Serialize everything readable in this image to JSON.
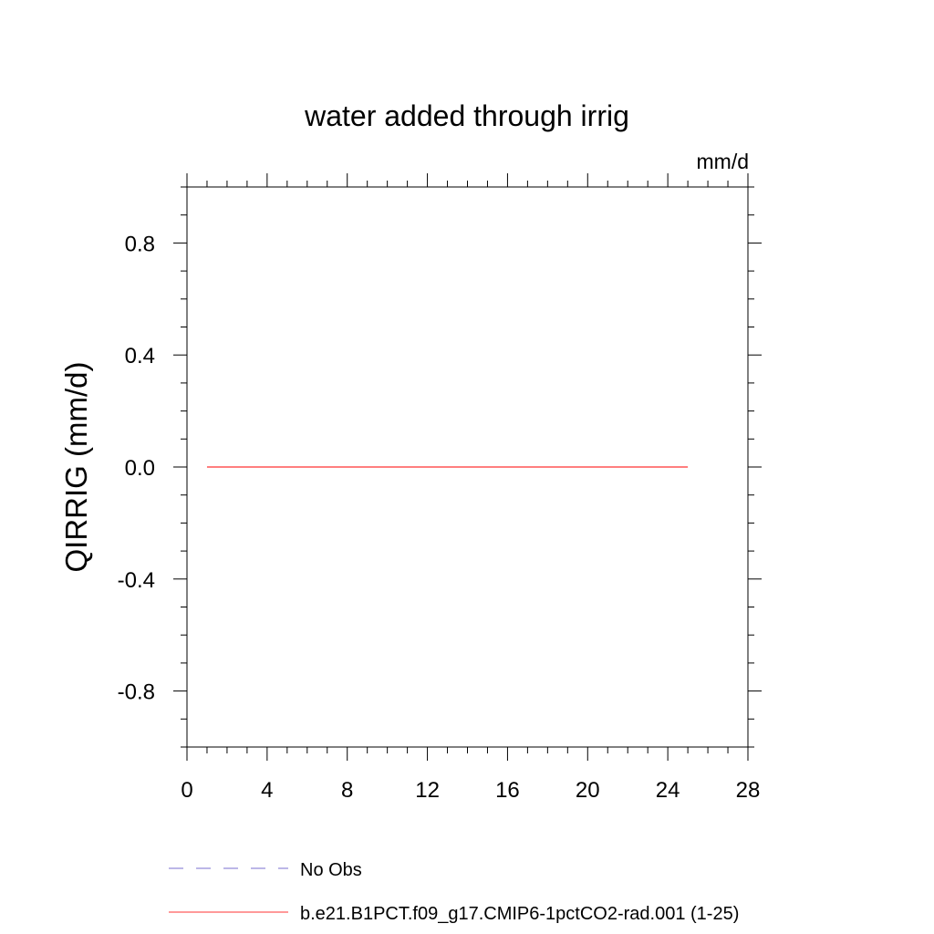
{
  "chart_data": {
    "type": "line",
    "title": "water added through irrig",
    "units_label": "mm/d",
    "ylabel": "QIRRIG  (mm/d)",
    "xlabel": "",
    "xlim": [
      0,
      28
    ],
    "ylim": [
      -1.0,
      1.0
    ],
    "x_ticks": [
      0,
      4,
      8,
      12,
      16,
      20,
      24,
      28
    ],
    "y_ticks": [
      -0.8,
      -0.4,
      0.0,
      0.4,
      0.8
    ],
    "x_tick_labels": [
      "0",
      "4",
      "8",
      "12",
      "16",
      "20",
      "24",
      "28"
    ],
    "y_tick_labels": [
      "-0.8",
      "-0.4",
      "0.0",
      "0.4",
      "0.8"
    ],
    "grid": false,
    "legend_position": "bottom",
    "series": [
      {
        "name": "b.e21.B1PCT.f09_g17.CMIP6-1pctCO2-rad.001 (1-25)",
        "color": "#ff3333",
        "style": "solid",
        "x": [
          1,
          25
        ],
        "y": [
          0.0,
          0.0
        ]
      }
    ],
    "legend": [
      {
        "label": "No Obs",
        "color": "#7a6fd0",
        "style": "dashed"
      },
      {
        "label": "b.e21.B1PCT.f09_g17.CMIP6-1pctCO2-rad.001 (1-25)",
        "color": "#ff3333",
        "style": "solid"
      }
    ]
  }
}
